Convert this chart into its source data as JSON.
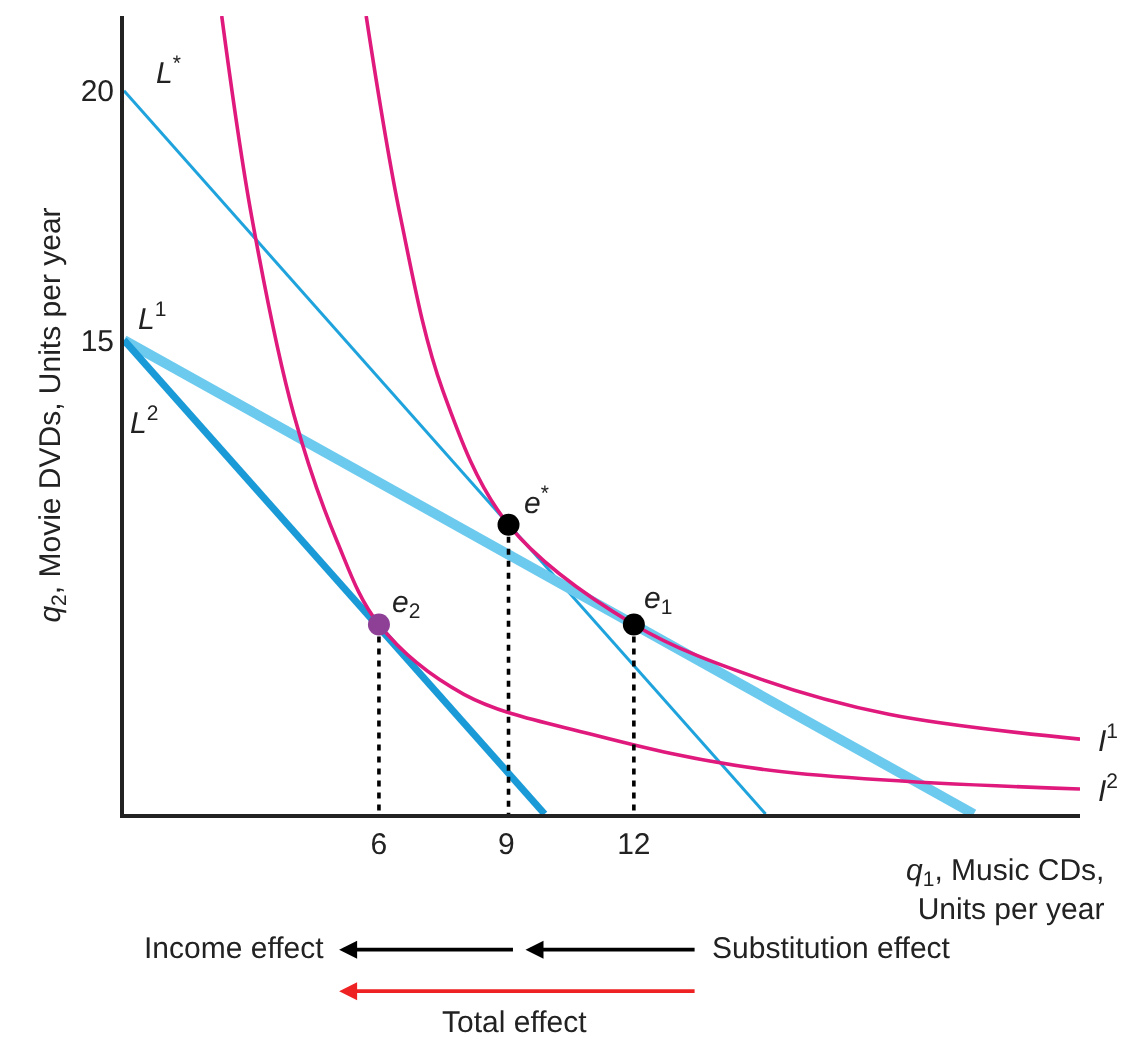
{
  "chart_data": {
    "type": "line",
    "xlabel": "q$_{1}$, Music CDs,\nUnits per year",
    "ylabel": "q$_{2}$, Movie DVDs, Units per year",
    "xlim": [
      0,
      22.5
    ],
    "ylim": [
      5.5,
      21.5
    ],
    "xticks": [
      6,
      9,
      12
    ],
    "yticks": [
      15,
      20
    ],
    "series": [
      {
        "name": "L$^{*}$",
        "color": "#1fa3dc",
        "x": [
          0,
          15.1
        ],
        "values": [
          20,
          5.5
        ],
        "line_style": "solid",
        "marker": "none"
      },
      {
        "name": "L$^{1}$",
        "color": "#6ccaee",
        "x": [
          0,
          20
        ],
        "values": [
          15,
          5.5
        ],
        "line_style": "solid",
        "marker": "none"
      },
      {
        "name": "L$^{2}$",
        "color": "#1a9ad6",
        "x": [
          0,
          9.9
        ],
        "values": [
          15,
          5.5
        ],
        "line_style": "solid",
        "marker": "none"
      },
      {
        "name": "I$^{1}$",
        "color": "#e0197d",
        "x": [
          5.7,
          6.5,
          7.5,
          9.05,
          12,
          15,
          18,
          22.5
        ],
        "values": [
          21.5,
          17.5,
          14,
          11.3,
          9.3,
          8.2,
          7.5,
          7.0
        ],
        "line_style": "solid",
        "marker": "none"
      },
      {
        "name": "I$^{2}$",
        "color": "#e0197d",
        "x": [
          2.3,
          3,
          4,
          5,
          6,
          8,
          11,
          15,
          22.5
        ],
        "values": [
          21.5,
          17.5,
          13.5,
          11,
          9.3,
          7.9,
          7.1,
          6.4,
          6.0
        ],
        "line_style": "solid",
        "marker": "none"
      },
      {
        "color": "#000000",
        "x": [
          6,
          6
        ],
        "values": [
          9.3,
          5.5
        ],
        "line_style": "dotted",
        "marker": "none"
      },
      {
        "color": "#000000",
        "x": [
          9.05,
          9.05
        ],
        "values": [
          11.3,
          5.5
        ],
        "line_style": "dotted",
        "marker": "none"
      },
      {
        "color": "#000000",
        "x": [
          12,
          12
        ],
        "values": [
          9.3,
          5.5
        ],
        "line_style": "dotted",
        "marker": "none"
      },
      {
        "name": "e$^{*}$",
        "type": "scatter",
        "color": "#000000",
        "x": [
          9.05
        ],
        "values": [
          11.3
        ],
        "marker": "circle"
      },
      {
        "name": "e$_{1}$",
        "type": "scatter",
        "color": "#000000",
        "x": [
          12
        ],
        "values": [
          9.3
        ],
        "marker": "circle"
      },
      {
        "name": "e$_{2}$",
        "type": "scatter",
        "color": "#8e3f96",
        "x": [
          6
        ],
        "values": [
          9.3
        ],
        "marker": "circle"
      }
    ],
    "annotations": [
      "Income effect",
      "Substitution effect",
      "Total effect"
    ]
  }
}
